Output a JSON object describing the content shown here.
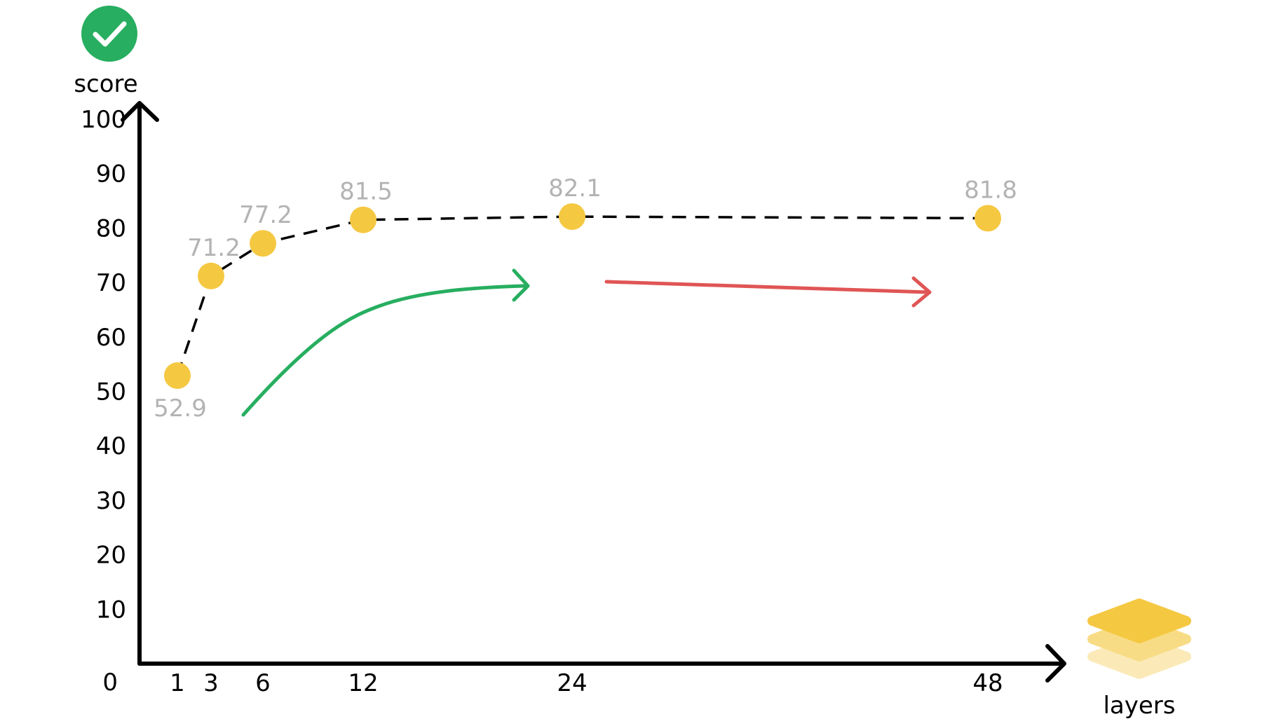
{
  "chart_data": {
    "type": "line",
    "title": "",
    "xlabel": "layers",
    "ylabel": "score",
    "x_ticks": [
      "1",
      "3",
      "6",
      "12",
      "24",
      "48"
    ],
    "y_ticks": [
      "0",
      "10",
      "20",
      "30",
      "40",
      "50",
      "60",
      "70",
      "80",
      "90",
      "100"
    ],
    "ylim": [
      0,
      100
    ],
    "series": [
      {
        "x": [
          1,
          3,
          6,
          12,
          24,
          48
        ],
        "values": [
          52.9,
          71.2,
          77.2,
          81.5,
          82.1,
          81.8
        ],
        "labels": [
          "52.9",
          "71.2",
          "77.2",
          "81.5",
          "82.1",
          "81.8"
        ]
      }
    ],
    "grid": false,
    "legend": "none",
    "icons": {
      "score_icon": "check-circle-icon",
      "layers_icon": "layers-stack-icon"
    },
    "colors": {
      "marker": "#f5c842",
      "line": "#000000",
      "value_label": "#b3b3b3",
      "rising_arrow": "#27ae60",
      "flat_arrow": "#e05555",
      "check_circle": "#27ae60"
    }
  }
}
